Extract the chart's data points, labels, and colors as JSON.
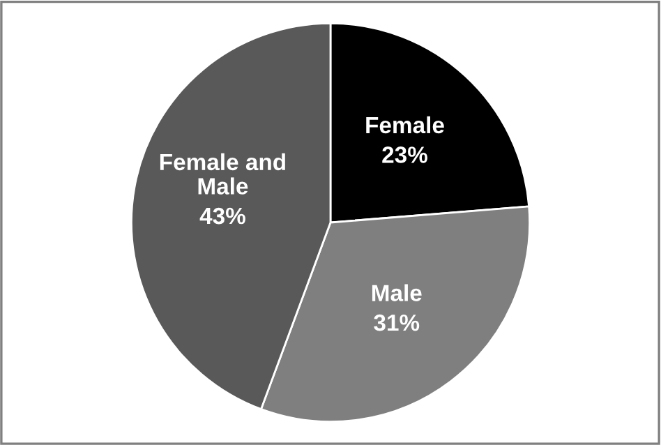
{
  "chart_data": {
    "type": "pie",
    "categories": [
      "Female",
      "Male",
      "Female and Male"
    ],
    "values": [
      23,
      31,
      43
    ],
    "colors": [
      "#000000",
      "#7f7f7f",
      "#595959"
    ],
    "value_labels": [
      "23%",
      "31%",
      "43%"
    ],
    "legend": false
  }
}
